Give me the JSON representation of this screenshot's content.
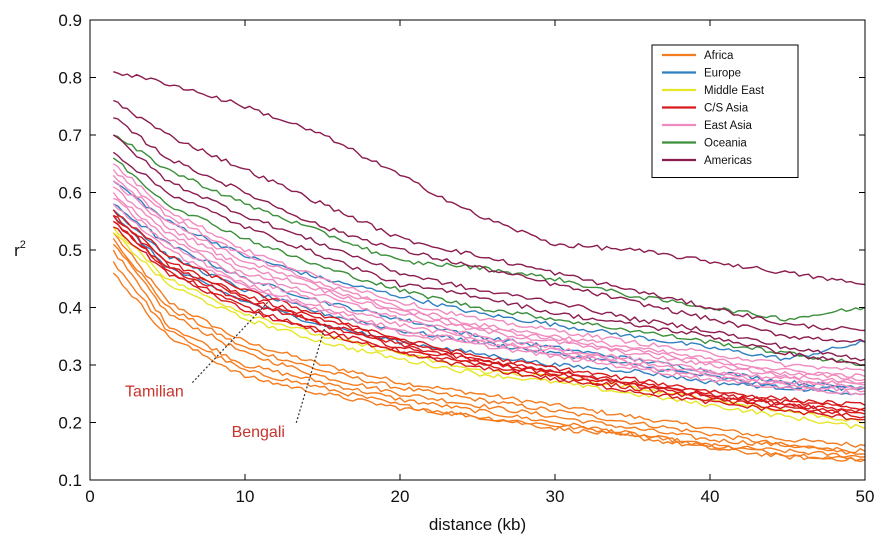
{
  "chart_data": {
    "type": "line",
    "title": "",
    "xlabel": "distance (kb)",
    "ylabel": "r",
    "ylabel_superscript": "2",
    "xlim": [
      0,
      50
    ],
    "ylim": [
      0.1,
      0.9
    ],
    "x_ticks": [
      0,
      10,
      20,
      30,
      40,
      50
    ],
    "y_ticks": [
      0.1,
      0.2,
      0.3,
      0.4,
      0.5,
      0.6,
      0.7,
      0.8,
      0.9
    ],
    "grid": false,
    "legend_position": "top-right",
    "x": [
      1.5,
      5,
      10,
      15,
      20,
      25,
      30,
      35,
      40,
      45,
      50
    ],
    "groups": [
      {
        "name": "Africa",
        "color": "#f47c20",
        "series": [
          {
            "values": [
              0.53,
              0.41,
              0.34,
              0.3,
              0.27,
              0.25,
              0.23,
              0.21,
              0.19,
              0.17,
              0.16
            ]
          },
          {
            "values": [
              0.52,
              0.4,
              0.33,
              0.29,
              0.26,
              0.24,
              0.22,
              0.2,
              0.18,
              0.16,
              0.15
            ]
          },
          {
            "values": [
              0.51,
              0.39,
              0.32,
              0.28,
              0.25,
              0.23,
              0.21,
              0.19,
              0.17,
              0.16,
              0.145
            ]
          },
          {
            "values": [
              0.5,
              0.37,
              0.3,
              0.27,
              0.24,
              0.22,
              0.2,
              0.18,
              0.16,
              0.15,
              0.14
            ]
          },
          {
            "values": [
              0.48,
              0.36,
              0.29,
              0.26,
              0.23,
              0.21,
              0.195,
              0.18,
              0.16,
              0.145,
              0.135
            ]
          },
          {
            "values": [
              0.46,
              0.35,
              0.28,
              0.25,
              0.225,
              0.21,
              0.19,
              0.175,
              0.155,
              0.14,
              0.135
            ]
          }
        ]
      },
      {
        "name": "Europe",
        "color": "#2f7fc1",
        "series": [
          {
            "values": [
              0.62,
              0.55,
              0.49,
              0.45,
              0.42,
              0.39,
              0.37,
              0.35,
              0.33,
              0.31,
              0.34
            ]
          },
          {
            "values": [
              0.58,
              0.51,
              0.45,
              0.41,
              0.38,
              0.35,
              0.33,
              0.31,
              0.29,
              0.27,
              0.26
            ]
          },
          {
            "values": [
              0.57,
              0.49,
              0.43,
              0.39,
              0.36,
              0.34,
              0.32,
              0.3,
              0.28,
              0.26,
              0.25
            ]
          },
          {
            "values": [
              0.56,
              0.47,
              0.41,
              0.37,
              0.34,
              0.32,
              0.3,
              0.29,
              0.27,
              0.26,
              0.26
            ]
          }
        ]
      },
      {
        "name": "Middle East",
        "color": "#e6e62a",
        "series": [
          {
            "values": [
              0.53,
              0.44,
              0.38,
              0.34,
              0.31,
              0.285,
              0.27,
              0.25,
              0.23,
              0.21,
              0.19
            ]
          },
          {
            "values": [
              0.54,
              0.45,
              0.39,
              0.35,
              0.32,
              0.29,
              0.28,
              0.26,
              0.24,
              0.22,
              0.2
            ]
          }
        ]
      },
      {
        "name": "C/S Asia",
        "color": "#d7191c",
        "series": [
          {
            "values": [
              0.56,
              0.48,
              0.42,
              0.38,
              0.34,
              0.31,
              0.29,
              0.27,
              0.25,
              0.235,
              0.225
            ]
          },
          {
            "values": [
              0.55,
              0.47,
              0.41,
              0.37,
              0.33,
              0.305,
              0.285,
              0.265,
              0.245,
              0.23,
              0.215
            ]
          },
          {
            "values": [
              0.55,
              0.465,
              0.4,
              0.36,
              0.325,
              0.3,
              0.28,
              0.26,
              0.24,
              0.225,
              0.21
            ]
          },
          {
            "values": [
              0.54,
              0.46,
              0.395,
              0.355,
              0.32,
              0.295,
              0.275,
              0.255,
              0.235,
              0.22,
              0.205
            ]
          },
          {
            "values": [
              0.57,
              0.49,
              0.43,
              0.385,
              0.345,
              0.315,
              0.295,
              0.275,
              0.255,
              0.24,
              0.23
            ]
          },
          {
            "values": [
              0.56,
              0.475,
              0.415,
              0.372,
              0.335,
              0.307,
              0.287,
              0.267,
              0.247,
              0.232,
              0.22
            ]
          }
        ]
      },
      {
        "name": "East Asia",
        "color": "#f08bbf",
        "series": [
          {
            "values": [
              0.64,
              0.56,
              0.49,
              0.44,
              0.4,
              0.37,
              0.35,
              0.33,
              0.31,
              0.29,
              0.28
            ]
          },
          {
            "values": [
              0.62,
              0.54,
              0.47,
              0.43,
              0.39,
              0.36,
              0.34,
              0.32,
              0.3,
              0.28,
              0.27
            ]
          },
          {
            "values": [
              0.63,
              0.55,
              0.48,
              0.435,
              0.395,
              0.365,
              0.345,
              0.325,
              0.305,
              0.285,
              0.275
            ]
          },
          {
            "values": [
              0.61,
              0.53,
              0.46,
              0.42,
              0.38,
              0.35,
              0.33,
              0.31,
              0.29,
              0.275,
              0.265
            ]
          },
          {
            "values": [
              0.6,
              0.52,
              0.45,
              0.41,
              0.37,
              0.345,
              0.325,
              0.305,
              0.285,
              0.27,
              0.26
            ]
          },
          {
            "values": [
              0.59,
              0.51,
              0.44,
              0.4,
              0.36,
              0.34,
              0.32,
              0.3,
              0.28,
              0.265,
              0.255
            ]
          },
          {
            "values": [
              0.65,
              0.57,
              0.5,
              0.45,
              0.41,
              0.38,
              0.36,
              0.34,
              0.32,
              0.3,
              0.29
            ]
          },
          {
            "values": [
              0.58,
              0.5,
              0.435,
              0.395,
              0.355,
              0.335,
              0.315,
              0.295,
              0.275,
              0.26,
              0.25
            ]
          }
        ]
      },
      {
        "name": "Oceania",
        "color": "#3b8f3b",
        "series": [
          {
            "values": [
              0.7,
              0.64,
              0.58,
              0.53,
              0.48,
              0.47,
              0.45,
              0.42,
              0.4,
              0.38,
              0.4
            ]
          },
          {
            "values": [
              0.66,
              0.58,
              0.52,
              0.47,
              0.43,
              0.4,
              0.38,
              0.36,
              0.34,
              0.32,
              0.3
            ]
          }
        ]
      },
      {
        "name": "Americas",
        "color": "#8b1c4f",
        "series": [
          {
            "values": [
              0.81,
              0.79,
              0.75,
              0.7,
              0.63,
              0.56,
              0.51,
              0.5,
              0.48,
              0.46,
              0.44
            ]
          },
          {
            "values": [
              0.76,
              0.7,
              0.64,
              0.58,
              0.52,
              0.49,
              0.46,
              0.43,
              0.4,
              0.37,
              0.36
            ]
          },
          {
            "values": [
              0.73,
              0.66,
              0.6,
              0.54,
              0.5,
              0.47,
              0.44,
              0.41,
              0.38,
              0.35,
              0.34
            ]
          },
          {
            "values": [
              0.7,
              0.62,
              0.56,
              0.51,
              0.46,
              0.43,
              0.41,
              0.38,
              0.36,
              0.33,
              0.31
            ]
          },
          {
            "values": [
              0.67,
              0.6,
              0.54,
              0.49,
              0.44,
              0.42,
              0.39,
              0.37,
              0.35,
              0.32,
              0.3
            ]
          }
        ]
      }
    ],
    "annotations": [
      {
        "text": "Tamilian",
        "label_x": 4.8,
        "label_y": 0.245,
        "target_x": 11.5,
        "target_y": 0.41
      },
      {
        "text": "Bengali",
        "label_x": 11.5,
        "label_y": 0.175,
        "target_x": 15.2,
        "target_y": 0.37
      }
    ]
  }
}
